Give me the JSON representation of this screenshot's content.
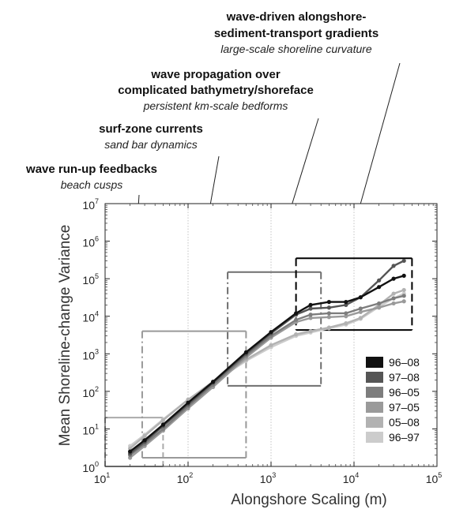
{
  "annotations": [
    {
      "title_lines": [
        "wave-driven alongshore-",
        "sediment-transport gradients"
      ],
      "subtitle": "large-scale shoreline curvature"
    },
    {
      "title_lines": [
        "wave propagation over",
        "complicated bathymetry/shoreface"
      ],
      "subtitle": "persistent km-scale bedforms"
    },
    {
      "title_lines": [
        "surf-zone currents"
      ],
      "subtitle": "sand bar dynamics"
    },
    {
      "title_lines": [
        "wave run-up feedbacks"
      ],
      "subtitle": "beach cusps"
    }
  ],
  "chart_data": {
    "type": "line",
    "xlabel": "Alongshore Scaling (m)",
    "ylabel": "Mean Shoreline-change Variance",
    "x_scale": "log",
    "y_scale": "log",
    "xlim": [
      10,
      100000
    ],
    "ylim": [
      1,
      10000000
    ],
    "x_ticks": [
      {
        "base": "10",
        "exp": "1"
      },
      {
        "base": "10",
        "exp": "2"
      },
      {
        "base": "10",
        "exp": "3"
      },
      {
        "base": "10",
        "exp": "4"
      },
      {
        "base": "10",
        "exp": "5"
      }
    ],
    "y_ticks": [
      {
        "base": "10",
        "exp": "0"
      },
      {
        "base": "10",
        "exp": "1"
      },
      {
        "base": "10",
        "exp": "2"
      },
      {
        "base": "10",
        "exp": "3"
      },
      {
        "base": "10",
        "exp": "4"
      },
      {
        "base": "10",
        "exp": "5"
      },
      {
        "base": "10",
        "exp": "6"
      },
      {
        "base": "10",
        "exp": "7"
      }
    ],
    "grid": "vertical dotted lines at 100, 1000, 10000",
    "legend_position": "bottom-right",
    "series": [
      {
        "name": "96–08",
        "color": "#111111",
        "x": [
          20,
          30,
          50,
          100,
          200,
          500,
          1000,
          2000,
          3000,
          5000,
          8000,
          12000,
          20000,
          30000,
          40000
        ],
        "y": [
          2.5,
          5,
          13,
          50,
          180,
          1100,
          3800,
          12000,
          20000,
          24000,
          24000,
          32000,
          60000,
          100000,
          120000
        ]
      },
      {
        "name": "97–08",
        "color": "#555555",
        "x": [
          20,
          30,
          50,
          100,
          200,
          500,
          1000,
          2000,
          3000,
          5000,
          8000,
          12000,
          20000,
          30000,
          40000
        ],
        "y": [
          2.2,
          4.5,
          12,
          45,
          170,
          1000,
          3500,
          11000,
          16000,
          17000,
          20000,
          32000,
          90000,
          220000,
          300000
        ]
      },
      {
        "name": "96–05",
        "color": "#7d7d7d",
        "x": [
          20,
          30,
          50,
          100,
          200,
          500,
          1000,
          2000,
          3000,
          5000,
          8000,
          12000,
          20000,
          30000,
          40000
        ],
        "y": [
          2.0,
          4,
          10,
          40,
          150,
          900,
          3000,
          8000,
          11000,
          12000,
          12000,
          16000,
          22000,
          30000,
          35000
        ]
      },
      {
        "name": "97–05",
        "color": "#9a9a9a",
        "x": [
          20,
          30,
          50,
          100,
          200,
          500,
          1000,
          2000,
          3000,
          5000,
          8000,
          12000,
          20000,
          30000,
          40000
        ],
        "y": [
          1.7,
          3.5,
          9,
          35,
          130,
          800,
          2700,
          7000,
          9000,
          9500,
          10000,
          13000,
          17000,
          22000,
          25000
        ]
      },
      {
        "name": "05–08",
        "color": "#b2b2b2",
        "x": [
          20,
          30,
          50,
          100,
          200,
          500,
          1000,
          2000,
          3000,
          5000,
          8000,
          12000,
          20000,
          30000,
          40000
        ],
        "y": [
          3.0,
          6.5,
          17,
          60,
          180,
          700,
          1700,
          3300,
          4000,
          5000,
          6500,
          9000,
          20000,
          40000,
          50000
        ]
      },
      {
        "name": "96–97",
        "color": "#cccccc",
        "x": [
          20,
          30,
          50,
          100,
          200,
          500,
          1000,
          2000,
          3000,
          5000,
          8000,
          12000,
          20000,
          30000,
          40000
        ],
        "y": [
          3.5,
          7,
          18,
          60,
          170,
          650,
          1500,
          3000,
          3700,
          4800,
          6000,
          8500,
          18000,
          30000,
          40000
        ]
      }
    ],
    "boxes": [
      {
        "label_ref": 3,
        "x": [
          10,
          50
        ],
        "y": [
          1,
          20
        ],
        "color": "#aaaaaa",
        "dash": "dashed"
      },
      {
        "label_ref": 2,
        "x": [
          28,
          500
        ],
        "y": [
          1.7,
          4000
        ],
        "color": "#999999",
        "dash": "dash-dot"
      },
      {
        "label_ref": 1,
        "x": [
          300,
          4000
        ],
        "y": [
          140,
          150000
        ],
        "color": "#6e6e6e",
        "dash": "dash-dot"
      },
      {
        "label_ref": 0,
        "x": [
          2000,
          50000
        ],
        "y": [
          4300,
          350000
        ],
        "color": "#000000",
        "dash": "long-dash"
      }
    ]
  }
}
